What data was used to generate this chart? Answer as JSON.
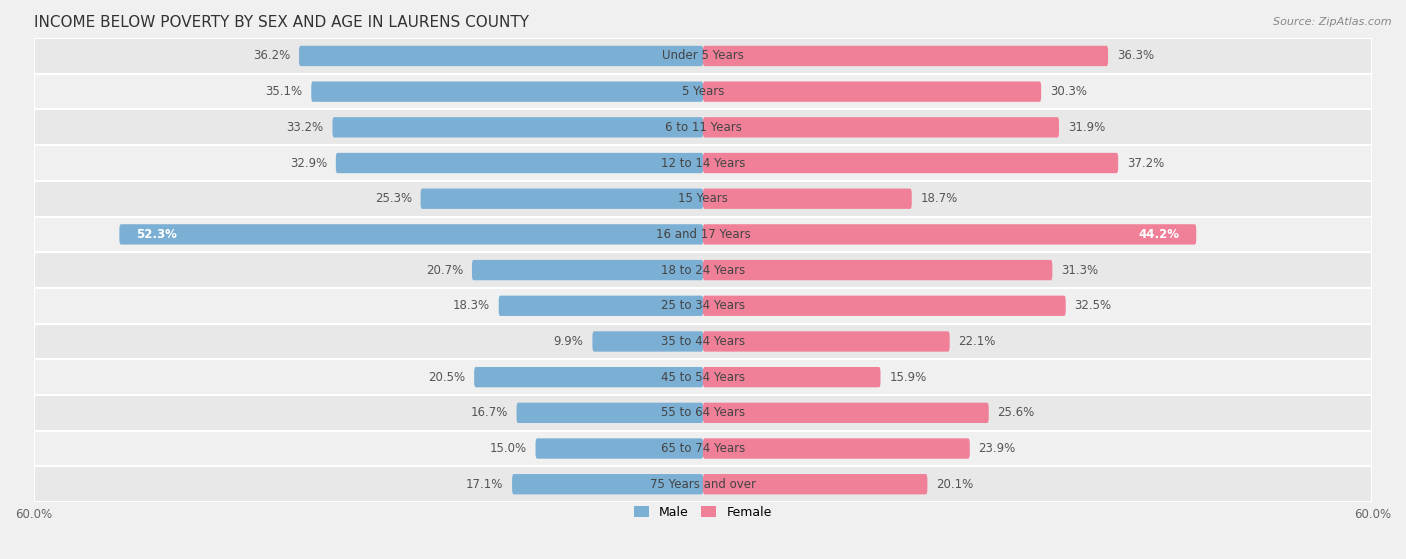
{
  "title": "INCOME BELOW POVERTY BY SEX AND AGE IN LAURENS COUNTY",
  "source": "Source: ZipAtlas.com",
  "categories": [
    "Under 5 Years",
    "5 Years",
    "6 to 11 Years",
    "12 to 14 Years",
    "15 Years",
    "16 and 17 Years",
    "18 to 24 Years",
    "25 to 34 Years",
    "35 to 44 Years",
    "45 to 54 Years",
    "55 to 64 Years",
    "65 to 74 Years",
    "75 Years and over"
  ],
  "male": [
    36.2,
    35.1,
    33.2,
    32.9,
    25.3,
    52.3,
    20.7,
    18.3,
    9.9,
    20.5,
    16.7,
    15.0,
    17.1
  ],
  "female": [
    36.3,
    30.3,
    31.9,
    37.2,
    18.7,
    44.2,
    31.3,
    32.5,
    22.1,
    15.9,
    25.6,
    23.9,
    20.1
  ],
  "male_color": "#7bafd4",
  "female_color": "#f08098",
  "male_color_light": "#aac8e4",
  "female_color_light": "#f4b8c8",
  "bar_height": 0.55,
  "xlim": 60.0,
  "background_color": "#f0f0f0",
  "row_bg_even": "#e8e8e8",
  "row_bg_odd": "#f0f0f0",
  "title_fontsize": 11,
  "label_fontsize": 8.5,
  "category_fontsize": 8.5,
  "source_fontsize": 8,
  "axis_label_fontsize": 8.5
}
